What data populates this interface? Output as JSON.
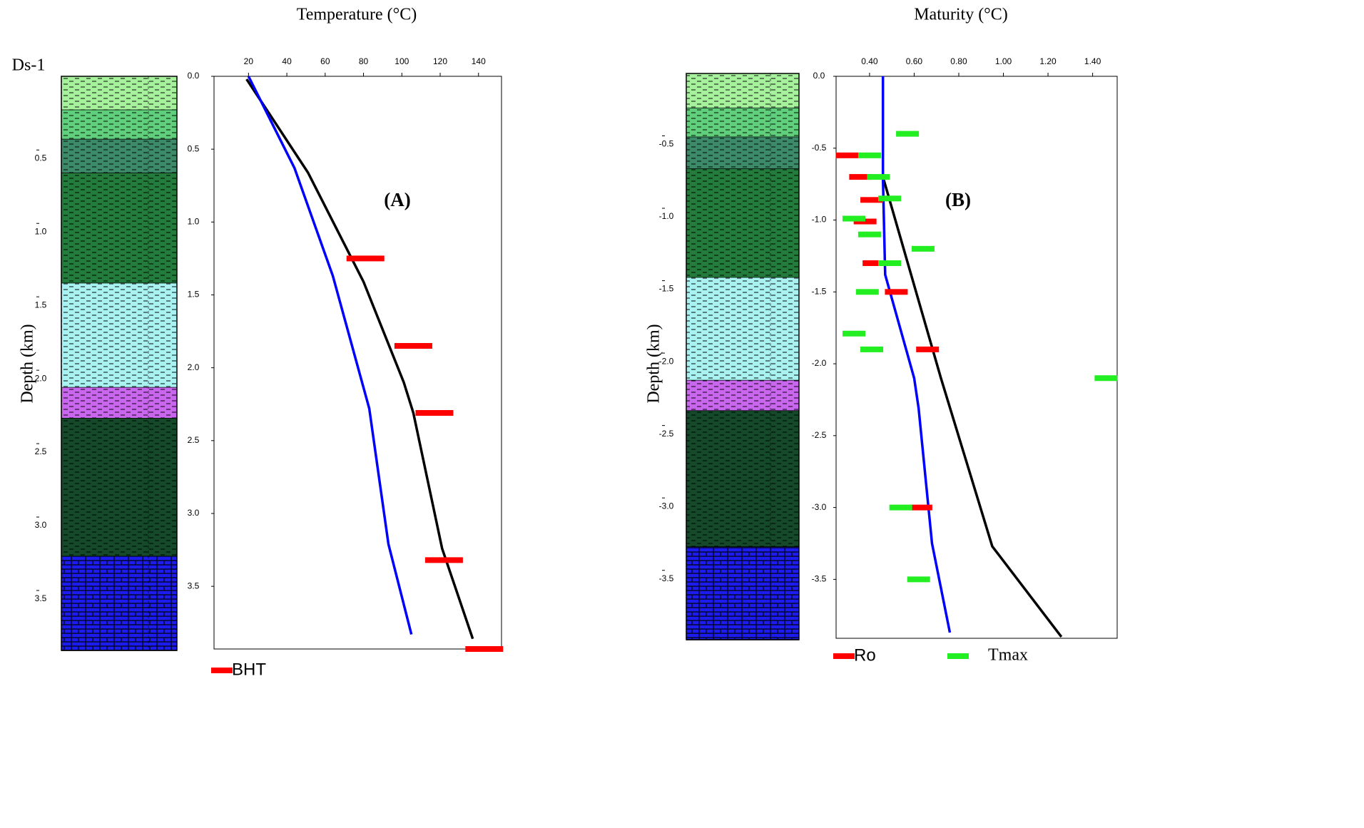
{
  "chart_data": [
    {
      "type": "line",
      "title": "Temperature (°C)",
      "annotation": "(A)",
      "well": "Ds-1",
      "ylabel": "Depth (km)",
      "xlim": [
        2,
        152
      ],
      "ylim": [
        0,
        3.93
      ],
      "xticks": [
        20,
        40,
        60,
        80,
        100,
        120,
        140
      ],
      "yticks": [
        {
          "value": 0,
          "label": "0.0"
        },
        0.5,
        {
          "value": 1,
          "label": "1.0"
        },
        1.5,
        {
          "value": 2,
          "label": "2.0"
        },
        2.5,
        {
          "value": 3,
          "label": "3.0"
        },
        3.5
      ],
      "series": [
        {
          "color": "#000000",
          "x": [
            19,
            51,
            80,
            101,
            106,
            121,
            137
          ],
          "y": [
            0.02,
            0.66,
            1.41,
            2.1,
            2.31,
            3.24,
            3.86
          ]
        },
        {
          "color": "#0000ff",
          "x": [
            20,
            44,
            64,
            83,
            93,
            105
          ],
          "y": [
            0,
            0.63,
            1.37,
            2.28,
            3.21,
            3.83
          ]
        },
        {
          "name": "BHT",
          "color": "#ff0000",
          "marker": "bar",
          "x": [
            81,
            106,
            117,
            122,
            143
          ],
          "y": [
            1.25,
            1.85,
            2.31,
            3.32,
            3.93
          ]
        }
      ],
      "lithology": {
        "ylim": [
          -0.06,
          3.85
        ],
        "yticks": [
          0.5,
          {
            "value": 1,
            "label": "1.0"
          },
          1.5,
          {
            "value": 2,
            "label": "2.0"
          },
          2.5,
          {
            "value": 3,
            "label": "3.0"
          },
          3.5
        ],
        "layers": [
          {
            "top": -0.06,
            "bottom": 0.17,
            "color": "#a6f29c",
            "pattern": "dash"
          },
          {
            "top": 0.17,
            "bottom": 0.37,
            "color": "#5fcf7c",
            "pattern": "dash"
          },
          {
            "top": 0.37,
            "bottom": 0.6,
            "color": "#3c8a68",
            "pattern": "dash"
          },
          {
            "top": 0.6,
            "bottom": 1.35,
            "color": "#237c3b",
            "pattern": "dash"
          },
          {
            "top": 1.35,
            "bottom": 2.06,
            "color": "#a8f2f2",
            "pattern": "dash"
          },
          {
            "top": 2.06,
            "bottom": 2.27,
            "color": "#c966ee",
            "pattern": "dash"
          },
          {
            "top": 2.27,
            "bottom": 3.21,
            "color": "#14492a",
            "pattern": "dash"
          },
          {
            "top": 3.21,
            "bottom": 3.85,
            "color": "#1c1cee",
            "pattern": "brick"
          }
        ]
      }
    },
    {
      "type": "line",
      "title": "Maturity  (°C)",
      "annotation": "(B)",
      "ylabel": "Depth (km)",
      "xlim": [
        0.25,
        1.51
      ],
      "ylim": [
        0,
        -3.91
      ],
      "xticks": [
        {
          "value": 0.4,
          "label": "0.40"
        },
        {
          "value": 0.6,
          "label": "0.60"
        },
        {
          "value": 0.8,
          "label": "0.80"
        },
        {
          "value": 1,
          "label": "1.00"
        },
        {
          "value": 1.2,
          "label": "1.20"
        },
        {
          "value": 1.4,
          "label": "1.40"
        }
      ],
      "yticks": [
        {
          "value": 0,
          "label": "0.0"
        },
        -0.5,
        {
          "value": -1,
          "label": "-1.0"
        },
        -1.5,
        {
          "value": -2,
          "label": "-2.0"
        },
        -2.5,
        {
          "value": -3,
          "label": "-3.0"
        },
        -3.5
      ],
      "series": [
        {
          "color": "#000000",
          "x": [
            0.46,
            0.72,
            0.95,
            1.26
          ],
          "y": [
            -0.7,
            -2.1,
            -3.27,
            -3.9
          ]
        },
        {
          "color": "#0000ff",
          "x": [
            0.46,
            0.46,
            0.47,
            0.6,
            0.62,
            0.68,
            0.76
          ],
          "y": [
            0,
            -0.71,
            -1.38,
            -2.1,
            -2.31,
            -3.25,
            -3.87
          ]
        },
        {
          "name": "Ro",
          "color": "#ff0000",
          "marker": "bar",
          "x": [
            0.3,
            0.36,
            0.41,
            0.38,
            0.42,
            0.52,
            0.66,
            0.63
          ],
          "y": [
            -0.55,
            -0.7,
            -0.86,
            -1.01,
            -1.3,
            -1.5,
            -1.9,
            -3
          ]
        },
        {
          "name": "Tmax",
          "color": "#22ee22",
          "marker": "bar",
          "x": [
            0.57,
            0.4,
            0.44,
            0.49,
            0.33,
            0.4,
            0.64,
            0.49,
            0.39,
            0.33,
            0.41,
            1.46,
            0.54,
            0.62
          ],
          "y": [
            -0.4,
            -0.55,
            -0.7,
            -0.85,
            -0.99,
            -1.1,
            -1.2,
            -1.3,
            -1.5,
            -1.79,
            -1.9,
            -2.1,
            -3,
            -3.5
          ]
        }
      ],
      "lithology": {
        "ylim": [
          -0.01,
          -3.92
        ],
        "yticks": [
          -0.5,
          {
            "value": -1,
            "label": "-1.0"
          },
          -1.5,
          {
            "value": -2,
            "label": "-2.0"
          },
          -2.5,
          {
            "value": -3,
            "label": "-3.0"
          },
          -3.5
        ],
        "layers": [
          {
            "top": -0.01,
            "bottom": -0.25,
            "color": "#a6f29c",
            "pattern": "dash"
          },
          {
            "top": -0.25,
            "bottom": -0.45,
            "color": "#5fcf7c",
            "pattern": "dash"
          },
          {
            "top": -0.45,
            "bottom": -0.67,
            "color": "#3c8a68",
            "pattern": "dash"
          },
          {
            "top": -0.67,
            "bottom": -1.42,
            "color": "#237c3b",
            "pattern": "dash"
          },
          {
            "top": -1.42,
            "bottom": -2.13,
            "color": "#a8f2f2",
            "pattern": "dash"
          },
          {
            "top": -2.13,
            "bottom": -2.34,
            "color": "#c966ee",
            "pattern": "dash"
          },
          {
            "top": -2.34,
            "bottom": -3.28,
            "color": "#14492a",
            "pattern": "dash"
          },
          {
            "top": -3.28,
            "bottom": -3.92,
            "color": "#1c1cee",
            "pattern": "brick"
          }
        ]
      }
    }
  ]
}
